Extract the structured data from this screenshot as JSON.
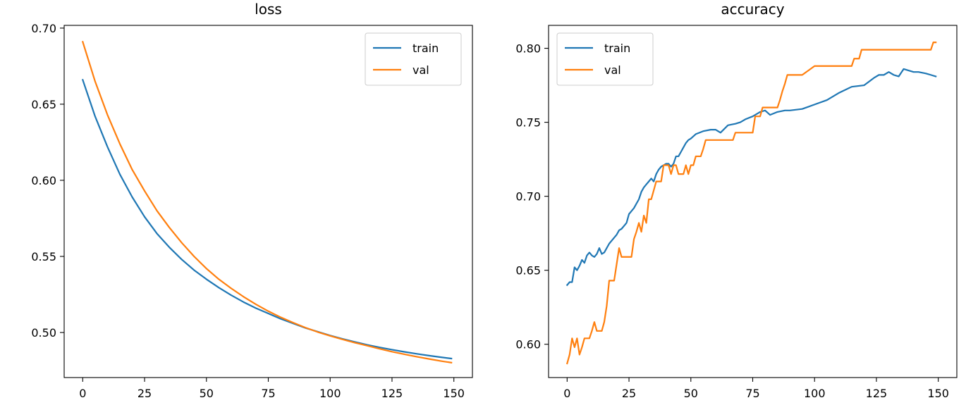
{
  "chart_data": [
    {
      "type": "line",
      "title": "loss",
      "xlabel": "",
      "ylabel": "",
      "xlim": [
        -7.5,
        157.5
      ],
      "ylim": [
        0.4704,
        0.7018
      ],
      "xticks": [
        0,
        25,
        50,
        75,
        100,
        125,
        150
      ],
      "yticks": [
        0.5,
        0.55,
        0.6,
        0.65,
        0.7
      ],
      "ytick_labels": [
        "0.50",
        "0.55",
        "0.60",
        "0.65",
        "0.70"
      ],
      "legend": "top-right",
      "grid": false,
      "series": [
        {
          "name": "train",
          "color": "#1f77b4",
          "x": [
            0,
            5,
            10,
            15,
            20,
            25,
            30,
            35,
            40,
            45,
            50,
            55,
            60,
            65,
            70,
            75,
            80,
            85,
            90,
            95,
            100,
            105,
            110,
            115,
            120,
            125,
            130,
            135,
            140,
            145,
            149
          ],
          "y": [
            0.666,
            0.642,
            0.622,
            0.604,
            0.589,
            0.576,
            0.565,
            0.556,
            0.548,
            0.541,
            0.535,
            0.5295,
            0.5245,
            0.52,
            0.516,
            0.5125,
            0.509,
            0.506,
            0.503,
            0.5005,
            0.498,
            0.4958,
            0.4938,
            0.4919,
            0.4902,
            0.4887,
            0.4873,
            0.486,
            0.4848,
            0.4837,
            0.4829
          ]
        },
        {
          "name": "val",
          "color": "#ff7f0e",
          "x": [
            0,
            5,
            10,
            15,
            20,
            25,
            30,
            35,
            40,
            45,
            50,
            55,
            60,
            65,
            70,
            75,
            80,
            85,
            90,
            95,
            100,
            105,
            110,
            115,
            120,
            125,
            130,
            135,
            140,
            145,
            149
          ],
          "y": [
            0.691,
            0.665,
            0.643,
            0.624,
            0.607,
            0.593,
            0.58,
            0.569,
            0.559,
            0.55,
            0.542,
            0.535,
            0.529,
            0.5235,
            0.5185,
            0.514,
            0.51,
            0.5065,
            0.5032,
            0.5003,
            0.4978,
            0.4955,
            0.4933,
            0.4913,
            0.4893,
            0.4874,
            0.4857,
            0.4841,
            0.4826,
            0.4812,
            0.4802
          ]
        }
      ]
    },
    {
      "type": "line",
      "title": "accuracy",
      "xlabel": "",
      "ylabel": "",
      "xlim": [
        -7.5,
        157.5
      ],
      "ylim": [
        0.5775,
        0.8155
      ],
      "xticks": [
        0,
        25,
        50,
        75,
        100,
        125,
        150
      ],
      "yticks": [
        0.6,
        0.65,
        0.7,
        0.75,
        0.8
      ],
      "ytick_labels": [
        "0.60",
        "0.65",
        "0.70",
        "0.75",
        "0.80"
      ],
      "legend": "top-left",
      "grid": false,
      "series": [
        {
          "name": "train",
          "color": "#1f77b4",
          "x": [
            0,
            1,
            2,
            3,
            4,
            5,
            6,
            7,
            8,
            9,
            10,
            11,
            12,
            13,
            14,
            15,
            16,
            17,
            18,
            19,
            20,
            21,
            22,
            23,
            24,
            25,
            26,
            27,
            28,
            29,
            30,
            31,
            32,
            33,
            34,
            35,
            36,
            37,
            38,
            39,
            40,
            41,
            42,
            43,
            44,
            45,
            46,
            47,
            48,
            49,
            50,
            52,
            55,
            58,
            60,
            62,
            65,
            68,
            70,
            72,
            75,
            78,
            80,
            82,
            85,
            88,
            90,
            95,
            100,
            105,
            110,
            115,
            120,
            124,
            126,
            128,
            130,
            132,
            134,
            136,
            138,
            140,
            142,
            145,
            147,
            149
          ],
          "y": [
            0.64,
            0.642,
            0.642,
            0.652,
            0.65,
            0.653,
            0.657,
            0.655,
            0.66,
            0.662,
            0.66,
            0.659,
            0.661,
            0.665,
            0.661,
            0.662,
            0.665,
            0.668,
            0.67,
            0.672,
            0.674,
            0.677,
            0.678,
            0.68,
            0.682,
            0.688,
            0.69,
            0.692,
            0.695,
            0.698,
            0.703,
            0.706,
            0.708,
            0.71,
            0.712,
            0.71,
            0.715,
            0.718,
            0.72,
            0.721,
            0.722,
            0.722,
            0.72,
            0.722,
            0.727,
            0.727,
            0.73,
            0.733,
            0.736,
            0.738,
            0.739,
            0.742,
            0.744,
            0.745,
            0.745,
            0.743,
            0.748,
            0.749,
            0.75,
            0.752,
            0.754,
            0.757,
            0.758,
            0.755,
            0.757,
            0.758,
            0.758,
            0.759,
            0.762,
            0.765,
            0.77,
            0.774,
            0.775,
            0.78,
            0.782,
            0.782,
            0.784,
            0.782,
            0.781,
            0.786,
            0.785,
            0.784,
            0.784,
            0.783,
            0.782,
            0.781
          ]
        },
        {
          "name": "val",
          "color": "#ff7f0e",
          "x": [
            0,
            1,
            2,
            3,
            4,
            5,
            6,
            7,
            8,
            9,
            10,
            11,
            12,
            13,
            14,
            15,
            16,
            17,
            18,
            19,
            20,
            21,
            22,
            23,
            24,
            25,
            26,
            27,
            28,
            29,
            30,
            31,
            32,
            33,
            34,
            35,
            36,
            37,
            38,
            39,
            40,
            41,
            42,
            43,
            44,
            45,
            46,
            47,
            48,
            49,
            50,
            51,
            52,
            53,
            54,
            55,
            56,
            57,
            58,
            59,
            60,
            61,
            62,
            63,
            64,
            65,
            66,
            67,
            68,
            69,
            70,
            71,
            72,
            73,
            74,
            75,
            76,
            77,
            78,
            79,
            80,
            81,
            82,
            83,
            84,
            85,
            86,
            87,
            88,
            89,
            90,
            95,
            100,
            105,
            110,
            115,
            116,
            117,
            118,
            119,
            120,
            125,
            130,
            135,
            140,
            145,
            147,
            148,
            149
          ],
          "y": [
            0.587,
            0.593,
            0.604,
            0.598,
            0.604,
            0.593,
            0.598,
            0.604,
            0.604,
            0.604,
            0.609,
            0.615,
            0.609,
            0.609,
            0.609,
            0.615,
            0.626,
            0.643,
            0.643,
            0.643,
            0.654,
            0.665,
            0.659,
            0.659,
            0.659,
            0.659,
            0.659,
            0.671,
            0.676,
            0.682,
            0.676,
            0.687,
            0.682,
            0.698,
            0.698,
            0.704,
            0.71,
            0.71,
            0.71,
            0.721,
            0.721,
            0.721,
            0.715,
            0.721,
            0.721,
            0.715,
            0.715,
            0.715,
            0.721,
            0.715,
            0.721,
            0.721,
            0.727,
            0.727,
            0.727,
            0.732,
            0.738,
            0.738,
            0.738,
            0.738,
            0.738,
            0.738,
            0.738,
            0.738,
            0.738,
            0.738,
            0.738,
            0.738,
            0.743,
            0.743,
            0.743,
            0.743,
            0.743,
            0.743,
            0.743,
            0.743,
            0.754,
            0.754,
            0.754,
            0.76,
            0.76,
            0.76,
            0.76,
            0.76,
            0.76,
            0.76,
            0.765,
            0.771,
            0.776,
            0.782,
            0.782,
            0.782,
            0.788,
            0.788,
            0.788,
            0.788,
            0.793,
            0.793,
            0.793,
            0.799,
            0.799,
            0.799,
            0.799,
            0.799,
            0.799,
            0.799,
            0.799,
            0.804,
            0.804
          ]
        }
      ]
    }
  ]
}
